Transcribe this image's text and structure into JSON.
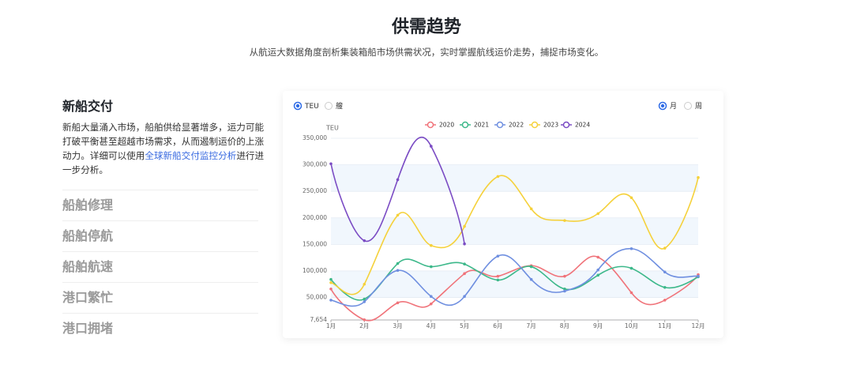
{
  "header": {
    "title": "供需趋势",
    "subtitle": "从航运大数据角度剖析集装箱船市场供需状况，实时掌握航线运价走势，捕捉市场变化。"
  },
  "panel": {
    "title": "新船交付",
    "text": "新船大量涌入市场，船舶供给显著增多，运力可能打破平衡甚至超越市场需求，从而遏制运价的上涨动力。详细可以使用",
    "link": "全球新船交付监控分析",
    "text_after": "进行进一步分析。"
  },
  "menu": [
    "船舶修理",
    "船舶停航",
    "船舶航速",
    "港口繁忙",
    "港口拥堵"
  ],
  "controls": {
    "unit_options": [
      "TEU",
      "艘"
    ],
    "period_options": [
      "月",
      "周"
    ]
  },
  "chart_data": {
    "type": "line",
    "y_label": "TEU",
    "categories": [
      "1月",
      "2月",
      "3月",
      "4月",
      "5月",
      "6月",
      "7月",
      "8月",
      "9月",
      "10月",
      "11月",
      "12月"
    ],
    "series": [
      {
        "name": "2020",
        "color": "#f0737a",
        "values": [
          66000,
          8000,
          40000,
          38000,
          95000,
          90000,
          110000,
          90000,
          126000,
          59000,
          45000,
          93000
        ]
      },
      {
        "name": "2021",
        "color": "#3cb88a",
        "values": [
          84000,
          47000,
          114000,
          108000,
          113000,
          83000,
          108000,
          66000,
          92000,
          105000,
          69000,
          89000
        ]
      },
      {
        "name": "2022",
        "color": "#6f8fe0",
        "values": [
          45000,
          42000,
          101000,
          52000,
          52000,
          128000,
          84000,
          62000,
          102000,
          142000,
          98000,
          90000
        ]
      },
      {
        "name": "2023",
        "color": "#f5d13b",
        "values": [
          78000,
          75000,
          205000,
          148000,
          184000,
          278000,
          217000,
          195000,
          208000,
          238000,
          143000,
          276000
        ]
      },
      {
        "name": "2024",
        "color": "#7b4cc4",
        "values": [
          302000,
          157000,
          272000,
          335000,
          151000,
          null,
          null,
          null,
          null,
          null,
          null,
          null
        ]
      }
    ],
    "ylim": [
      7654,
      350000
    ],
    "yticks": [
      {
        "value": 7654,
        "label": "7,654"
      },
      {
        "value": 50000,
        "label": "50,000"
      },
      {
        "value": 100000,
        "label": "100,000"
      },
      {
        "value": 150000,
        "label": "150,000"
      },
      {
        "value": 200000,
        "label": "200,000"
      },
      {
        "value": 250000,
        "label": "250,000"
      },
      {
        "value": 300000,
        "label": "300,000"
      },
      {
        "value": 350000,
        "label": "350,000"
      }
    ],
    "grid": true
  }
}
